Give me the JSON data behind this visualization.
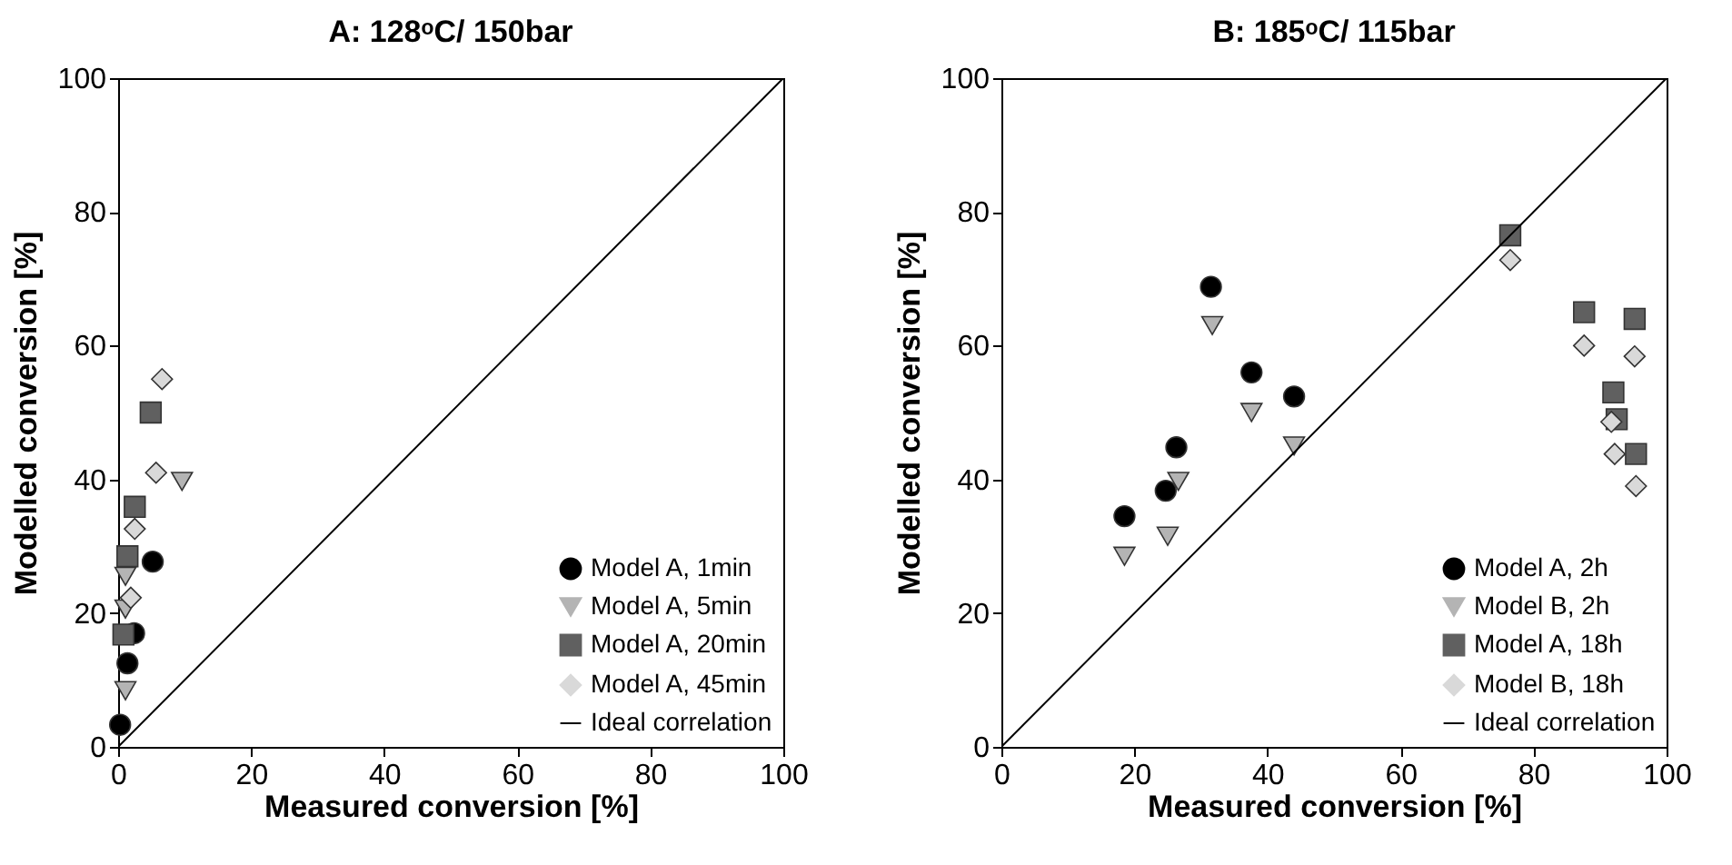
{
  "chart_data": [
    {
      "type": "scatter",
      "title": "A: 128ᵒC/ 150bar",
      "xlabel": "Measured conversion [%]",
      "ylabel": "Modelled conversion [%]",
      "xlim": [
        0,
        100
      ],
      "ylim": [
        0,
        100
      ],
      "xticks": [
        0,
        20,
        40,
        60,
        80,
        100
      ],
      "yticks": [
        0,
        20,
        40,
        60,
        80,
        100
      ],
      "grid": false,
      "legend": "bottom right",
      "series": [
        {
          "name": "Model A, 1min",
          "color": "#000000",
          "marker": "circle",
          "x": [
            0.3,
            1.4,
            2.4,
            5.2
          ],
          "values": [
            3.3,
            12.5,
            17,
            27.7
          ]
        },
        {
          "name": "Model A, 5min",
          "color": "#b4b4b4",
          "marker": "triangle",
          "x": [
            1.1,
            1.1,
            1.1,
            9.6
          ],
          "values": [
            8.4,
            20.6,
            25.5,
            39.7
          ]
        },
        {
          "name": "Model A, 20min",
          "color": "#606060",
          "marker": "square",
          "x": [
            0.8,
            1.4,
            2.5,
            4.9
          ],
          "values": [
            16.8,
            28.5,
            35.9,
            50
          ]
        },
        {
          "name": "Model A, 45min",
          "color": "#d9d9d9",
          "marker": "diamond",
          "x": [
            1.9,
            2.5,
            5.7,
            6.6
          ],
          "values": [
            22.3,
            32.6,
            41,
            55
          ]
        },
        {
          "name": "Ideal correlation",
          "type": "line",
          "color": "#000000",
          "marker": "none",
          "x": [
            0,
            100
          ],
          "values": [
            0,
            100
          ]
        }
      ]
    },
    {
      "type": "scatter",
      "title": "B: 185ᵒC/ 115bar",
      "xlabel": "Measured conversion [%]",
      "ylabel": "Modelled conversion [%]",
      "xlim": [
        0,
        100
      ],
      "ylim": [
        0,
        100
      ],
      "xticks": [
        0,
        20,
        40,
        60,
        80,
        100
      ],
      "yticks": [
        0,
        20,
        40,
        60,
        80,
        100
      ],
      "grid": false,
      "legend": "bottom right",
      "series": [
        {
          "name": "Model A, 2h",
          "color": "#000000",
          "marker": "circle",
          "x": [
            18.5,
            24.7,
            26.3,
            31.5,
            37.6,
            44
          ],
          "values": [
            34.5,
            38.3,
            44.8,
            68.8,
            56,
            52.4
          ]
        },
        {
          "name": "Model B, 2h",
          "color": "#b4b4b4",
          "marker": "triangle",
          "x": [
            18.5,
            25,
            26.6,
            31.7,
            37.6,
            44
          ],
          "values": [
            28.5,
            31.5,
            39.7,
            63,
            50,
            45
          ]
        },
        {
          "name": "Model A, 18h",
          "color": "#606060",
          "marker": "square",
          "x": [
            76.5,
            87.6,
            92,
            92.5,
            95.2,
            95.4
          ],
          "values": [
            76.5,
            65,
            53,
            49,
            64,
            43.8
          ]
        },
        {
          "name": "Model B, 18h",
          "color": "#d9d9d9",
          "marker": "diamond",
          "x": [
            76.5,
            87.6,
            91.7,
            92.2,
            95.2,
            95.4
          ],
          "values": [
            72.8,
            60,
            48.6,
            43.8,
            58.4,
            39
          ]
        },
        {
          "name": "Ideal correlation",
          "type": "line",
          "color": "#000000",
          "marker": "none",
          "x": [
            0,
            100
          ],
          "values": [
            0,
            100
          ]
        }
      ]
    }
  ]
}
